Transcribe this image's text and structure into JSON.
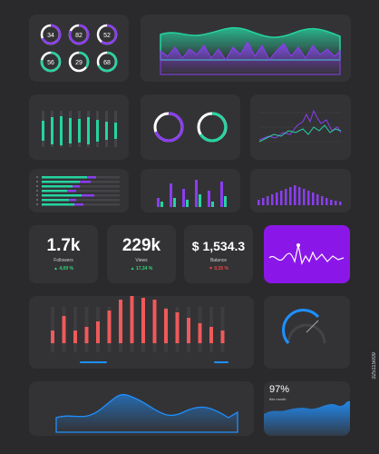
{
  "colors": {
    "bg": "#2a2a2c",
    "card": "#333336",
    "green": "#25d4a0",
    "purple": "#8b3df0",
    "red": "#f05a5a",
    "blue": "#1e90ff",
    "highlight": "#8a17e8"
  },
  "rings": [
    "34",
    "82",
    "52",
    "56",
    "29",
    "68"
  ],
  "stats": [
    {
      "value": "1.7k",
      "label": "Followers",
      "change": "4,09 %",
      "direction": "up"
    },
    {
      "value": "229k",
      "label": "Views",
      "change": "17,34 %",
      "direction": "up"
    },
    {
      "value": "$ 1,534.3",
      "label": "Balance",
      "change": "0,35 %",
      "direction": "down"
    }
  ],
  "area_card": {
    "percent": "97%",
    "caption": "this month"
  },
  "watermark": "325115009"
}
